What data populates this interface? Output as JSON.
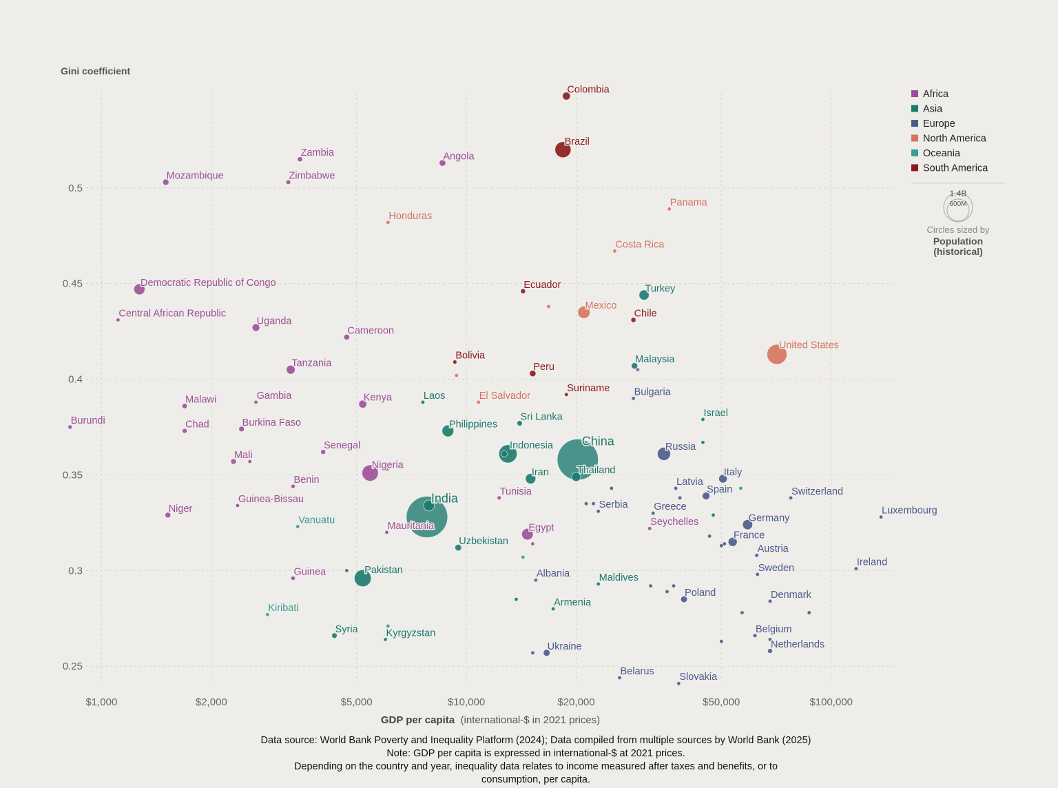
{
  "colors": {
    "Africa": "#9b4f96",
    "Asia": "#1b7a6e",
    "Europe": "#4a5a8a",
    "North America": "#d4735e",
    "Oceania": "#3c9e95",
    "South America": "#8b1a1a"
  },
  "footer": {
    "line1": "Data source: World Bank Poverty and Inequality Platform (2024); Data compiled from multiple sources by World Bank (2025)",
    "line2": "Note: GDP per capita is expressed in international-$ at 2021 prices.",
    "line3": "Depending on the country and year, inequality data relates to income measured after taxes and benefits, or to",
    "line4": "consumption, per capita."
  },
  "chart_data": {
    "type": "scatter",
    "ylabel": "Gini coefficient",
    "xlabel": "GDP per capita",
    "xlabel_note": "(international-$ in 2021 prices)",
    "x_scale": "log",
    "xlim": [
      850,
      150000
    ],
    "ylim": [
      0.24,
      0.555
    ],
    "x_ticks": [
      {
        "value": 1000,
        "label": "$1,000"
      },
      {
        "value": 2000,
        "label": "$2,000"
      },
      {
        "value": 5000,
        "label": "$5,000"
      },
      {
        "value": 10000,
        "label": "$10,000"
      },
      {
        "value": 20000,
        "label": "$20,000"
      },
      {
        "value": 50000,
        "label": "$50,000"
      },
      {
        "value": 100000,
        "label": "$100,000"
      }
    ],
    "y_ticks": [
      {
        "value": 0.25,
        "label": "0.25"
      },
      {
        "value": 0.3,
        "label": "0.3"
      },
      {
        "value": 0.35,
        "label": "0.35"
      },
      {
        "value": 0.4,
        "label": "0.4"
      },
      {
        "value": 0.45,
        "label": "0.45"
      },
      {
        "value": 0.5,
        "label": "0.5"
      }
    ],
    "grid": true,
    "legend": {
      "placement": "top-right",
      "entries": [
        "Africa",
        "Asia",
        "Europe",
        "North America",
        "Oceania",
        "South America"
      ],
      "size_values": [
        "1.4B",
        "600M"
      ],
      "size_note_1": "Circles sized by",
      "size_note_2": "Population",
      "size_note_3": "(historical)"
    },
    "points": [
      {
        "label": "Colombia",
        "region": "South America",
        "x": 18800,
        "y": 0.548,
        "pop": 52
      },
      {
        "label": "Brazil",
        "region": "South America",
        "x": 18400,
        "y": 0.52,
        "pop": 216
      },
      {
        "label": "Zambia",
        "region": "Africa",
        "x": 3500,
        "y": 0.515,
        "pop": 20
      },
      {
        "label": "Angola",
        "region": "Africa",
        "x": 8600,
        "y": 0.513,
        "pop": 36
      },
      {
        "label": "Mozambique",
        "region": "Africa",
        "x": 1500,
        "y": 0.503,
        "pop": 33
      },
      {
        "label": "Zimbabwe",
        "region": "Africa",
        "x": 3250,
        "y": 0.503,
        "pop": 16
      },
      {
        "label": "Panama",
        "region": "North America",
        "x": 36000,
        "y": 0.489,
        "pop": 4
      },
      {
        "label": "Honduras",
        "region": "North America",
        "x": 6100,
        "y": 0.482,
        "pop": 10
      },
      {
        "label": "Costa Rica",
        "region": "North America",
        "x": 25500,
        "y": 0.467,
        "pop": 5
      },
      {
        "label": "Democratic Republic of Congo",
        "region": "Africa",
        "x": 1270,
        "y": 0.447,
        "pop": 102
      },
      {
        "label": "Ecuador",
        "region": "South America",
        "x": 14300,
        "y": 0.446,
        "pop": 18
      },
      {
        "label": "Turkey",
        "region": "Asia",
        "x": 30700,
        "y": 0.444,
        "pop": 85
      },
      {
        "label": "Mexico",
        "region": "North America",
        "x": 21000,
        "y": 0.435,
        "pop": 128
      },
      {
        "label": "Central African Republic",
        "region": "Africa",
        "x": 1110,
        "y": 0.431,
        "pop": 5
      },
      {
        "label": "Chile",
        "region": "South America",
        "x": 28700,
        "y": 0.431,
        "pop": 19
      },
      {
        "label": "Uganda",
        "region": "Africa",
        "x": 2650,
        "y": 0.427,
        "pop": 48
      },
      {
        "label": "Cameroon",
        "region": "Africa",
        "x": 4700,
        "y": 0.422,
        "pop": 28
      },
      {
        "label": "United States",
        "region": "North America",
        "x": 71000,
        "y": 0.413,
        "pop": 335
      },
      {
        "label": "Bolivia",
        "region": "South America",
        "x": 9300,
        "y": 0.409,
        "pop": 12
      },
      {
        "label": "Malaysia",
        "region": "Asia",
        "x": 28900,
        "y": 0.407,
        "pop": 34
      },
      {
        "label": "Tanzania",
        "region": "Africa",
        "x": 3300,
        "y": 0.405,
        "pop": 65
      },
      {
        "label": "Peru",
        "region": "South America",
        "x": 15200,
        "y": 0.403,
        "pop": 34
      },
      {
        "label": "Suriname",
        "region": "South America",
        "x": 18800,
        "y": 0.392,
        "pop": 1
      },
      {
        "label": "Bulgaria",
        "region": "Europe",
        "x": 28700,
        "y": 0.39,
        "pop": 7
      },
      {
        "label": "Kenya",
        "region": "Africa",
        "x": 5200,
        "y": 0.387,
        "pop": 54
      },
      {
        "label": "Laos",
        "region": "Asia",
        "x": 7600,
        "y": 0.388,
        "pop": 7
      },
      {
        "label": "El Salvador",
        "region": "North America",
        "x": 10800,
        "y": 0.388,
        "pop": 6
      },
      {
        "label": "Gambia",
        "region": "Africa",
        "x": 2650,
        "y": 0.388,
        "pop": 3
      },
      {
        "label": "Malawi",
        "region": "Africa",
        "x": 1690,
        "y": 0.386,
        "pop": 20
      },
      {
        "label": "Israel",
        "region": "Asia",
        "x": 44500,
        "y": 0.379,
        "pop": 9
      },
      {
        "label": "Burundi",
        "region": "Africa",
        "x": 820,
        "y": 0.375,
        "pop": 13
      },
      {
        "label": "Chad",
        "region": "Africa",
        "x": 1690,
        "y": 0.373,
        "pop": 18
      },
      {
        "label": "Burkina Faso",
        "region": "Africa",
        "x": 2420,
        "y": 0.374,
        "pop": 23
      },
      {
        "label": "Philippines",
        "region": "Asia",
        "x": 8900,
        "y": 0.373,
        "pop": 115
      },
      {
        "label": "Sri Lanka",
        "region": "Asia",
        "x": 14000,
        "y": 0.377,
        "pop": 22
      },
      {
        "label": "Russia",
        "region": "Europe",
        "x": 34800,
        "y": 0.361,
        "pop": 145
      },
      {
        "label": "China",
        "region": "Asia",
        "x": 20200,
        "y": 0.358,
        "pop": 1410
      },
      {
        "label": "Indonesia",
        "region": "Asia",
        "x": 13000,
        "y": 0.361,
        "pop": 277
      },
      {
        "label": "Senegal",
        "region": "Africa",
        "x": 4050,
        "y": 0.362,
        "pop": 18
      },
      {
        "label": "Mali",
        "region": "Africa",
        "x": 2300,
        "y": 0.357,
        "pop": 23
      },
      {
        "label": "Nigeria",
        "region": "Africa",
        "x": 5450,
        "y": 0.351,
        "pop": 223
      },
      {
        "label": "Thailand",
        "region": "Asia",
        "x": 20000,
        "y": 0.349,
        "pop": 71
      },
      {
        "label": "Iran",
        "region": "Asia",
        "x": 15000,
        "y": 0.348,
        "pop": 89
      },
      {
        "label": "Italy",
        "region": "Europe",
        "x": 50500,
        "y": 0.348,
        "pop": 59
      },
      {
        "label": "Benin",
        "region": "Africa",
        "x": 3350,
        "y": 0.344,
        "pop": 13
      },
      {
        "label": "Latvia",
        "region": "Europe",
        "x": 37500,
        "y": 0.343,
        "pop": 2
      },
      {
        "label": "Spain",
        "region": "Europe",
        "x": 45400,
        "y": 0.339,
        "pop": 48
      },
      {
        "label": "Switzerland",
        "region": "Europe",
        "x": 77500,
        "y": 0.338,
        "pop": 9
      },
      {
        "label": "Tunisia",
        "region": "Africa",
        "x": 12300,
        "y": 0.338,
        "pop": 12
      },
      {
        "label": "Guinea-Bissau",
        "region": "Africa",
        "x": 2360,
        "y": 0.334,
        "pop": 2
      },
      {
        "label": "India",
        "region": "Asia",
        "x": 7800,
        "y": 0.328,
        "pop": 1430
      },
      {
        "label": "Serbia",
        "region": "Europe",
        "x": 23000,
        "y": 0.331,
        "pop": 7
      },
      {
        "label": "Greece",
        "region": "Europe",
        "x": 32500,
        "y": 0.33,
        "pop": 10
      },
      {
        "label": "Niger",
        "region": "Africa",
        "x": 1520,
        "y": 0.329,
        "pop": 27
      },
      {
        "label": "Luxembourg",
        "region": "Europe",
        "x": 137000,
        "y": 0.328,
        "pop": 1
      },
      {
        "label": "Germany",
        "region": "Europe",
        "x": 59000,
        "y": 0.324,
        "pop": 84
      },
      {
        "label": "Vanuatu",
        "region": "Oceania",
        "x": 3450,
        "y": 0.323,
        "pop": 1
      },
      {
        "label": "Seychelles",
        "region": "Africa",
        "x": 31800,
        "y": 0.322,
        "pop": 1
      },
      {
        "label": "Mauritania",
        "region": "Africa",
        "x": 6050,
        "y": 0.32,
        "pop": 5
      },
      {
        "label": "Egypt",
        "region": "Africa",
        "x": 14700,
        "y": 0.319,
        "pop": 112
      },
      {
        "label": "France",
        "region": "Europe",
        "x": 53700,
        "y": 0.315,
        "pop": 68
      },
      {
        "label": "Uzbekistan",
        "region": "Asia",
        "x": 9500,
        "y": 0.312,
        "pop": 36
      },
      {
        "label": "Austria",
        "region": "Europe",
        "x": 62500,
        "y": 0.308,
        "pop": 9
      },
      {
        "label": "Ireland",
        "region": "Europe",
        "x": 117000,
        "y": 0.301,
        "pop": 5
      },
      {
        "label": "Pakistan",
        "region": "Asia",
        "x": 5200,
        "y": 0.296,
        "pop": 240
      },
      {
        "label": "Guinea",
        "region": "Africa",
        "x": 3350,
        "y": 0.296,
        "pop": 14
      },
      {
        "label": "Sweden",
        "region": "Europe",
        "x": 62800,
        "y": 0.298,
        "pop": 10
      },
      {
        "label": "Albania",
        "region": "Europe",
        "x": 15500,
        "y": 0.295,
        "pop": 3
      },
      {
        "label": "Maldives",
        "region": "Asia",
        "x": 23000,
        "y": 0.293,
        "pop": 1
      },
      {
        "label": "Poland",
        "region": "Europe",
        "x": 39500,
        "y": 0.285,
        "pop": 37
      },
      {
        "label": "Denmark",
        "region": "Europe",
        "x": 68000,
        "y": 0.284,
        "pop": 6
      },
      {
        "label": "Kiribati",
        "region": "Oceania",
        "x": 2850,
        "y": 0.277,
        "pop": 1
      },
      {
        "label": "Armenia",
        "region": "Asia",
        "x": 17300,
        "y": 0.28,
        "pop": 3
      },
      {
        "label": "Syria",
        "region": "Asia",
        "x": 4350,
        "y": 0.266,
        "pop": 22
      },
      {
        "label": "Belgium",
        "region": "Europe",
        "x": 61800,
        "y": 0.266,
        "pop": 12
      },
      {
        "label": "Kyrgyzstan",
        "region": "Asia",
        "x": 6000,
        "y": 0.264,
        "pop": 7
      },
      {
        "label": "Netherlands",
        "region": "Europe",
        "x": 68000,
        "y": 0.258,
        "pop": 18
      },
      {
        "label": "Ukraine",
        "region": "Europe",
        "x": 16600,
        "y": 0.257,
        "pop": 38
      },
      {
        "label": "Belarus",
        "region": "Europe",
        "x": 26300,
        "y": 0.244,
        "pop": 9
      },
      {
        "label": "Slovakia",
        "region": "Europe",
        "x": 38200,
        "y": 0.241,
        "pop": 5
      },
      {
        "label": "",
        "region": "Europe",
        "x": 25000,
        "y": 0.343,
        "pop": 2
      },
      {
        "label": "",
        "region": "Europe",
        "x": 21300,
        "y": 0.335,
        "pop": 2
      },
      {
        "label": "",
        "region": "Europe",
        "x": 22300,
        "y": 0.335,
        "pop": 2
      },
      {
        "label": "",
        "region": "Europe",
        "x": 38500,
        "y": 0.338,
        "pop": 2
      },
      {
        "label": "",
        "region": "Europe",
        "x": 46400,
        "y": 0.318,
        "pop": 2
      },
      {
        "label": "",
        "region": "Europe",
        "x": 50000,
        "y": 0.313,
        "pop": 2
      },
      {
        "label": "",
        "region": "Europe",
        "x": 51000,
        "y": 0.314,
        "pop": 2
      },
      {
        "label": "",
        "region": "Europe",
        "x": 32000,
        "y": 0.292,
        "pop": 2
      },
      {
        "label": "",
        "region": "Europe",
        "x": 35500,
        "y": 0.289,
        "pop": 2
      },
      {
        "label": "",
        "region": "Europe",
        "x": 37000,
        "y": 0.292,
        "pop": 2
      },
      {
        "label": "",
        "region": "Europe",
        "x": 57000,
        "y": 0.278,
        "pop": 2
      },
      {
        "label": "",
        "region": "Europe",
        "x": 50000,
        "y": 0.263,
        "pop": 2
      },
      {
        "label": "",
        "region": "Europe",
        "x": 87000,
        "y": 0.278,
        "pop": 2
      },
      {
        "label": "",
        "region": "Europe",
        "x": 68000,
        "y": 0.264,
        "pop": 2
      },
      {
        "label": "",
        "region": "Europe",
        "x": 15200,
        "y": 0.257,
        "pop": 2
      },
      {
        "label": "",
        "region": "Asia",
        "x": 47500,
        "y": 0.329,
        "pop": 6
      },
      {
        "label": "",
        "region": "Oceania",
        "x": 56500,
        "y": 0.343,
        "pop": 3
      },
      {
        "label": "",
        "region": "Asia",
        "x": 44500,
        "y": 0.367,
        "pop": 2
      },
      {
        "label": "",
        "region": "Africa",
        "x": 29500,
        "y": 0.405,
        "pop": 2
      },
      {
        "label": "",
        "region": "North America",
        "x": 16800,
        "y": 0.438,
        "pop": 2
      },
      {
        "label": "",
        "region": "North America",
        "x": 9400,
        "y": 0.402,
        "pop": 2
      },
      {
        "label": "",
        "region": "South America",
        "x": 15000,
        "y": 0.45,
        "pop": 2
      },
      {
        "label": "",
        "region": "Africa",
        "x": 6050,
        "y": 0.353,
        "pop": 2
      },
      {
        "label": "",
        "region": "Africa",
        "x": 2550,
        "y": 0.357,
        "pop": 2
      },
      {
        "label": "",
        "region": "Africa",
        "x": 15200,
        "y": 0.314,
        "pop": 2
      },
      {
        "label": "",
        "region": "Asia",
        "x": 4700,
        "y": 0.3,
        "pop": 5
      },
      {
        "label": "",
        "region": "Asia",
        "x": 12700,
        "y": 0.361,
        "pop": 33
      },
      {
        "label": "",
        "region": "Asia",
        "x": 7900,
        "y": 0.334,
        "pop": 100
      },
      {
        "label": "",
        "region": "Asia",
        "x": 13700,
        "y": 0.285,
        "pop": 2
      },
      {
        "label": "",
        "region": "Oceania",
        "x": 14300,
        "y": 0.307,
        "pop": 2
      },
      {
        "label": "",
        "region": "Oceania",
        "x": 6100,
        "y": 0.271,
        "pop": 2
      }
    ]
  }
}
